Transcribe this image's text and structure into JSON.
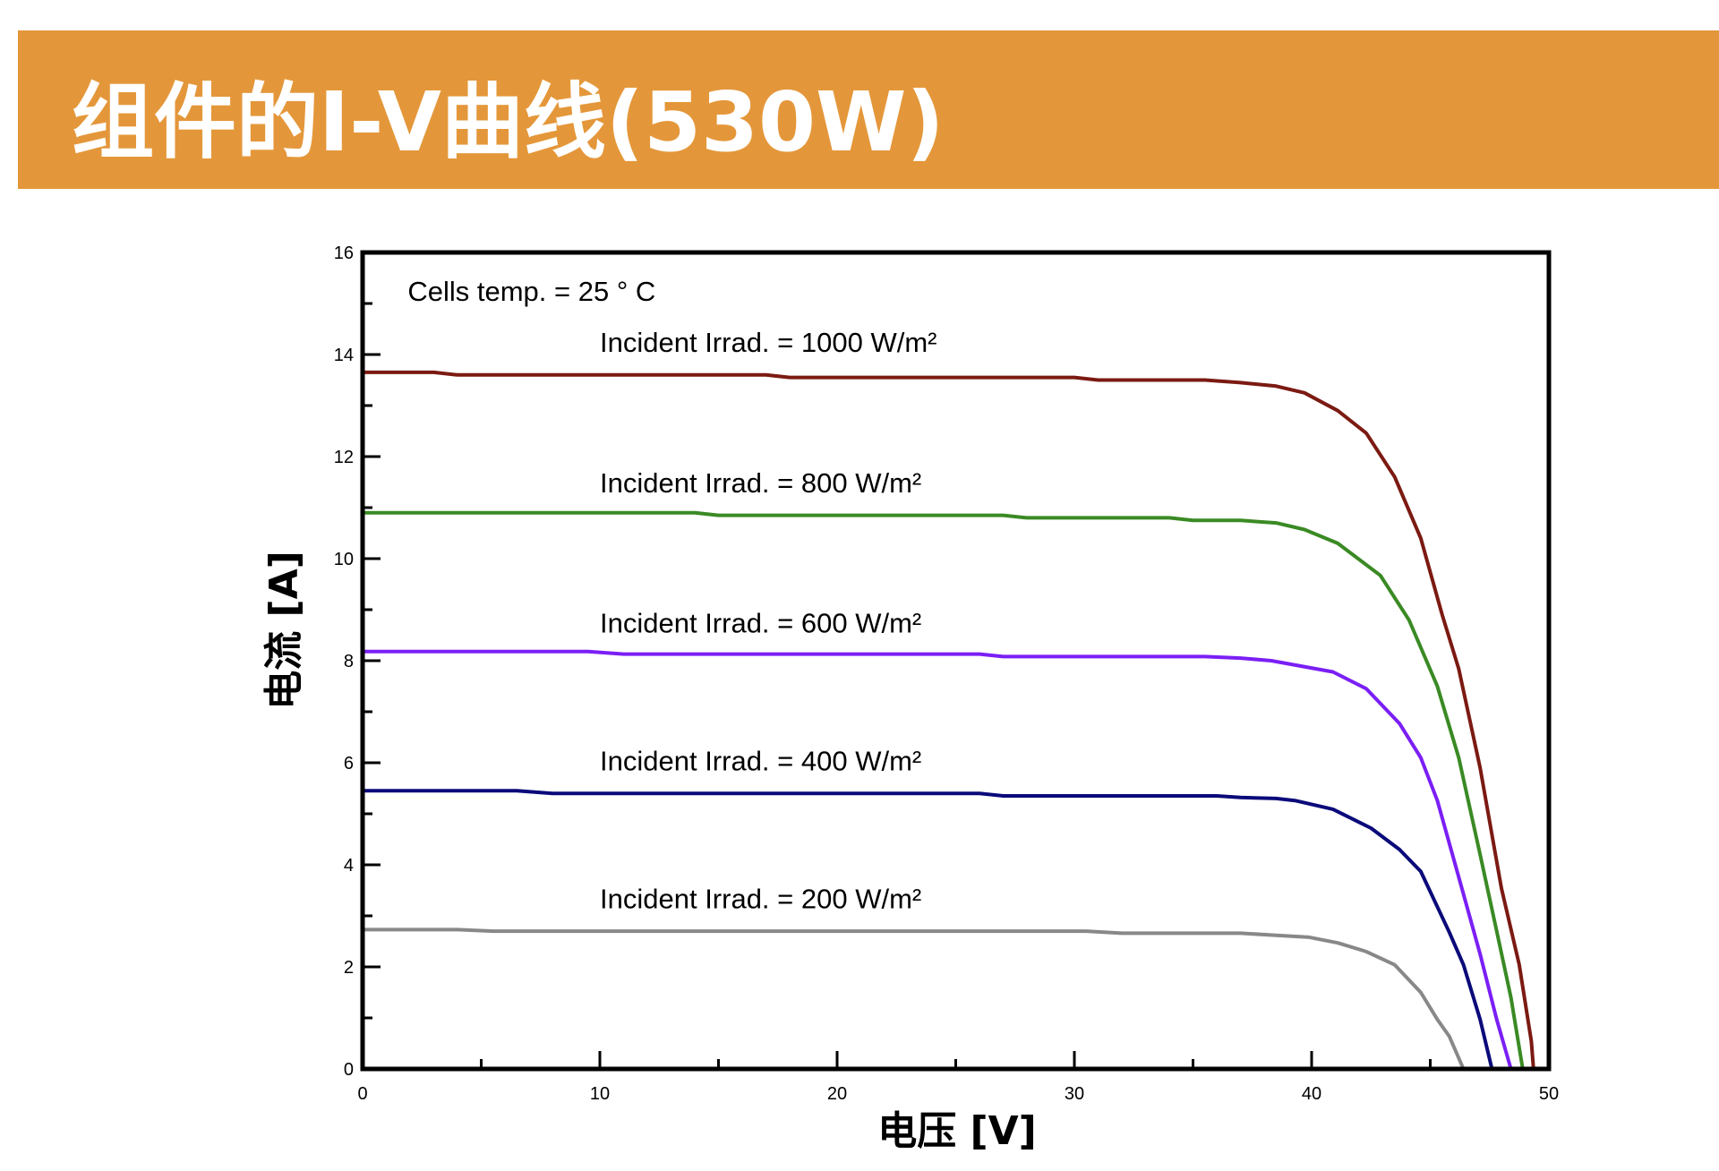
{
  "header": {
    "title": "组件的I-V曲线(530W)"
  },
  "colors": {
    "banner": "#E4973A"
  },
  "chart_data": {
    "type": "line",
    "xlabel": "电压 [V]",
    "ylabel": "电流 [A]",
    "xlim": [
      0,
      50
    ],
    "ylim": [
      0,
      16
    ],
    "xticks": [
      0,
      10,
      20,
      30,
      40,
      50
    ],
    "yticks": [
      0,
      2,
      4,
      6,
      8,
      10,
      12,
      14,
      16
    ],
    "grid": false,
    "annotations": [
      "Cells temp. = 25 ° C"
    ],
    "series": [
      {
        "name": "Incident Irrad. = 1000 W/m²",
        "color": "#7B1A12",
        "x": [
          0,
          3,
          4,
          17,
          18,
          30,
          31,
          35.5,
          37,
          38.5,
          39.7,
          41.1,
          42.3,
          43.5,
          44.6,
          45.5,
          46.2,
          47.1,
          48.0,
          48.75,
          49.26,
          49.35
        ],
        "y": [
          13.65,
          13.65,
          13.6,
          13.6,
          13.55,
          13.55,
          13.5,
          13.5,
          13.45,
          13.38,
          13.25,
          12.9,
          12.46,
          11.6,
          10.4,
          8.9,
          7.84,
          5.9,
          3.54,
          2.04,
          0.54,
          0
        ]
      },
      {
        "name": "Incident Irrad. = 800 W/m²",
        "color": "#3A8A24",
        "x": [
          0,
          14,
          15,
          27,
          28,
          34,
          35,
          37,
          38.5,
          39.7,
          41.1,
          42.9,
          44.1,
          45.3,
          46.2,
          47.1,
          47.8,
          48.4,
          48.9
        ],
        "y": [
          10.9,
          10.9,
          10.85,
          10.85,
          10.8,
          10.8,
          10.75,
          10.75,
          10.7,
          10.57,
          10.3,
          9.67,
          8.8,
          7.5,
          6.1,
          4.2,
          2.7,
          1.4,
          0
        ]
      },
      {
        "name": "Incident Irrad. = 600 W/m²",
        "color": "#7B1FF5",
        "x": [
          0,
          9.5,
          11,
          26,
          27,
          35.5,
          37,
          38.3,
          40.9,
          42.3,
          43.7,
          44.6,
          45.3,
          46.2,
          47.1,
          47.8,
          48.4
        ],
        "y": [
          8.18,
          8.18,
          8.13,
          8.13,
          8.08,
          8.08,
          8.05,
          8.0,
          7.78,
          7.45,
          6.77,
          6.1,
          5.26,
          3.76,
          2.25,
          0.97,
          0
        ]
      },
      {
        "name": "Incident Irrad. = 400 W/m²",
        "color": "#0A0A7A",
        "x": [
          0,
          6.5,
          8,
          26,
          27,
          36,
          37,
          38.5,
          39.3,
          40.9,
          42.5,
          43.7,
          44.6,
          45.8,
          46.4,
          47.1,
          47.6
        ],
        "y": [
          5.45,
          5.45,
          5.4,
          5.4,
          5.35,
          5.35,
          5.32,
          5.3,
          5.26,
          5.09,
          4.72,
          4.3,
          3.87,
          2.68,
          2.04,
          0.97,
          0
        ]
      },
      {
        "name": "Incident Irrad. = 200 W/m²",
        "color": "#888888",
        "x": [
          0,
          4,
          5.5,
          30.5,
          32,
          37,
          38.5,
          39.9,
          41.1,
          42.3,
          43.5,
          44.6,
          45.3,
          45.8,
          46.4
        ],
        "y": [
          2.73,
          2.73,
          2.7,
          2.7,
          2.66,
          2.66,
          2.62,
          2.58,
          2.47,
          2.3,
          2.04,
          1.5,
          0.97,
          0.64,
          0
        ]
      }
    ]
  }
}
